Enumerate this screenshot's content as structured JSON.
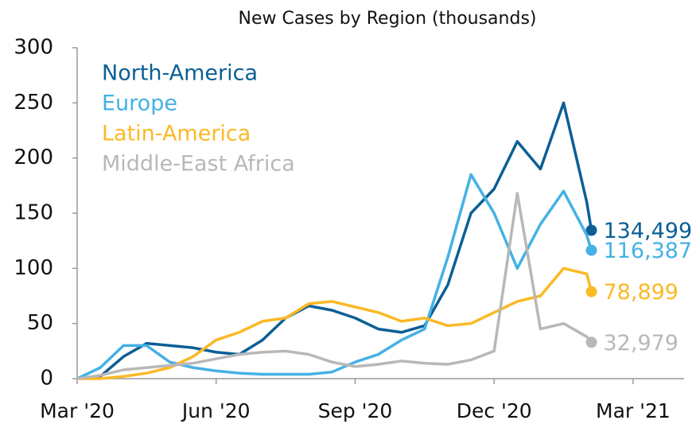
{
  "chart_data": {
    "type": "line",
    "title": "New Cases by Region (thousands)",
    "x": [
      0,
      0.5,
      1,
      1.5,
      2,
      2.5,
      3,
      3.5,
      4,
      4.5,
      5,
      5.5,
      6,
      6.5,
      7,
      7.5,
      8,
      8.5,
      9,
      9.5,
      10,
      10.5,
      11,
      11.1
    ],
    "series": [
      {
        "name": "North-America",
        "color": "#0b5f95",
        "values": [
          0,
          2,
          20,
          32,
          30,
          28,
          24,
          22,
          35,
          55,
          66,
          62,
          55,
          45,
          42,
          48,
          85,
          150,
          172,
          215,
          190,
          250,
          160,
          134.499
        ],
        "value_labels": [
          null,
          null,
          null,
          null,
          null,
          null,
          null,
          null,
          null,
          null,
          null,
          null,
          null,
          null,
          null,
          null,
          null,
          null,
          null,
          null,
          null,
          null,
          null,
          "134,499"
        ]
      },
      {
        "name": "Europe",
        "color": "#45b1e4",
        "values": [
          0,
          10,
          30,
          30,
          15,
          10,
          7,
          5,
          4,
          4,
          4,
          6,
          15,
          22,
          35,
          45,
          110,
          185,
          150,
          100,
          140,
          170,
          130,
          116.387
        ],
        "value_labels": [
          null,
          null,
          null,
          null,
          null,
          null,
          null,
          null,
          null,
          null,
          null,
          null,
          null,
          null,
          null,
          null,
          null,
          null,
          null,
          null,
          null,
          null,
          null,
          "116,387"
        ]
      },
      {
        "name": "Latin-America",
        "color": "#fbb925",
        "values": [
          0,
          0,
          2,
          5,
          10,
          20,
          35,
          42,
          52,
          55,
          68,
          70,
          65,
          60,
          52,
          55,
          48,
          50,
          60,
          70,
          75,
          100,
          95,
          78.899
        ],
        "value_labels": [
          null,
          null,
          null,
          null,
          null,
          null,
          null,
          null,
          null,
          null,
          null,
          null,
          null,
          null,
          null,
          null,
          null,
          null,
          null,
          null,
          null,
          null,
          null,
          "78,899"
        ]
      },
      {
        "name": "Middle-East Africa",
        "color": "#b8b8b8",
        "values": [
          0,
          3,
          8,
          10,
          12,
          14,
          18,
          22,
          24,
          25,
          22,
          15,
          11,
          13,
          16,
          14,
          13,
          17,
          25,
          168,
          45,
          50,
          38,
          32.979
        ],
        "value_labels": [
          null,
          null,
          null,
          null,
          null,
          null,
          null,
          null,
          null,
          null,
          null,
          null,
          null,
          null,
          null,
          null,
          null,
          null,
          null,
          null,
          null,
          null,
          null,
          "32,979"
        ]
      }
    ],
    "xlim": [
      0,
      13.1
    ],
    "xticks": [
      {
        "value": 0,
        "label": "Mar '20"
      },
      {
        "value": 3,
        "label": "Jun '20"
      },
      {
        "value": 6,
        "label": "Sep '20"
      },
      {
        "value": 9,
        "label": "Dec '20"
      },
      {
        "value": 12,
        "label": "Mar '21"
      }
    ],
    "ylim": [
      0,
      300
    ],
    "yticks": [
      0,
      50,
      100,
      150,
      200,
      250,
      300
    ],
    "grid": false,
    "legend": "upper left"
  }
}
